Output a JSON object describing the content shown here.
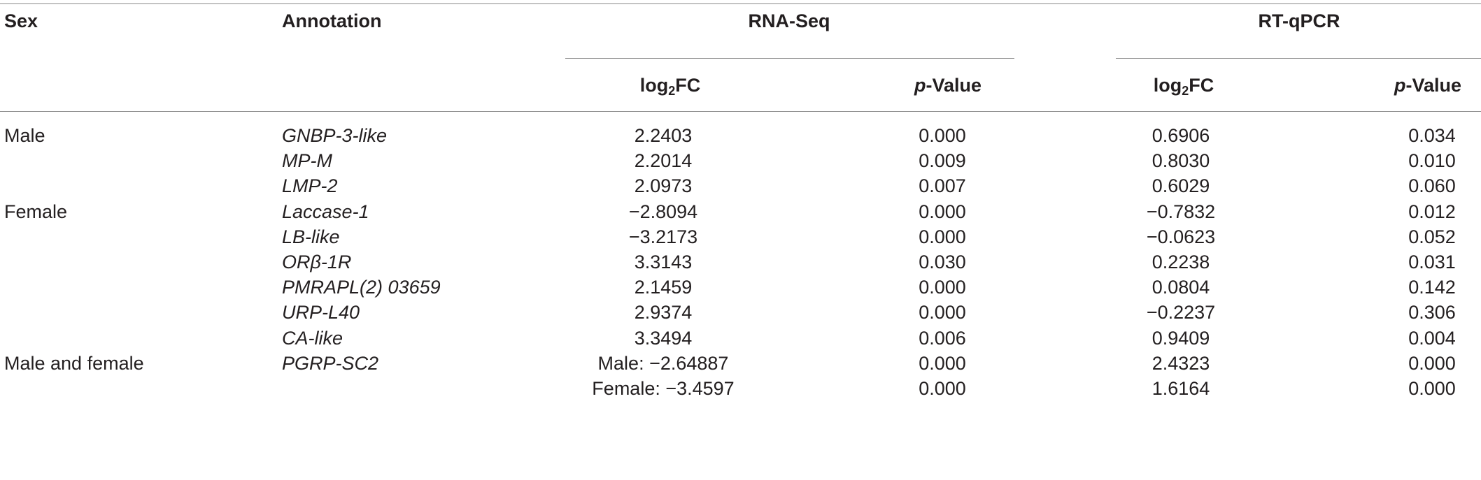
{
  "headers": {
    "sex": "Sex",
    "annotation": "Annotation",
    "rnaseq": "RNA-Seq",
    "rtqpcr": "RT-qPCR",
    "log_main": "log",
    "log_sub": "2",
    "log_suffix": "FC",
    "p_italic": "p",
    "p_suffix": "-Value"
  },
  "rows": [
    {
      "sex": "Male",
      "annotation": "GNBP-3-like",
      "rna_fc": "2.2403",
      "rna_p": "0.000",
      "qpcr_fc": "0.6906",
      "qpcr_p": "0.034"
    },
    {
      "sex": "",
      "annotation": "MP-M",
      "rna_fc": "2.2014",
      "rna_p": "0.009",
      "qpcr_fc": "0.8030",
      "qpcr_p": "0.010"
    },
    {
      "sex": "",
      "annotation": "LMP-2",
      "rna_fc": "2.0973",
      "rna_p": "0.007",
      "qpcr_fc": "0.6029",
      "qpcr_p": "0.060"
    },
    {
      "sex": "Female",
      "annotation": "Laccase-1",
      "rna_fc": "−2.8094",
      "rna_p": "0.000",
      "qpcr_fc": "−0.7832",
      "qpcr_p": "0.012"
    },
    {
      "sex": "",
      "annotation": "LB-like",
      "rna_fc": "−3.2173",
      "rna_p": "0.000",
      "qpcr_fc": "−0.0623",
      "qpcr_p": "0.052"
    },
    {
      "sex": "",
      "annotation": "ORβ-1R",
      "rna_fc": "3.3143",
      "rna_p": "0.030",
      "qpcr_fc": "0.2238",
      "qpcr_p": "0.031"
    },
    {
      "sex": "",
      "annotation": "PMRAPL(2) 03659",
      "rna_fc": "2.1459",
      "rna_p": "0.000",
      "qpcr_fc": "0.0804",
      "qpcr_p": "0.142"
    },
    {
      "sex": "",
      "annotation": "URP-L40",
      "rna_fc": "2.9374",
      "rna_p": "0.000",
      "qpcr_fc": "−0.2237",
      "qpcr_p": "0.306"
    },
    {
      "sex": "",
      "annotation": "CA-like",
      "rna_fc": "3.3494",
      "rna_p": "0.006",
      "qpcr_fc": "0.9409",
      "qpcr_p": "0.004"
    },
    {
      "sex": "Male and female",
      "annotation": "PGRP-SC2",
      "rna_fc": "Male: −2.64887",
      "rna_p": "0.000",
      "qpcr_fc": "2.4323",
      "qpcr_p": "0.000"
    },
    {
      "sex": "",
      "annotation": "",
      "rna_fc": "Female: −3.4597",
      "rna_p": "0.000",
      "qpcr_fc": "1.6164",
      "qpcr_p": "0.000"
    }
  ]
}
